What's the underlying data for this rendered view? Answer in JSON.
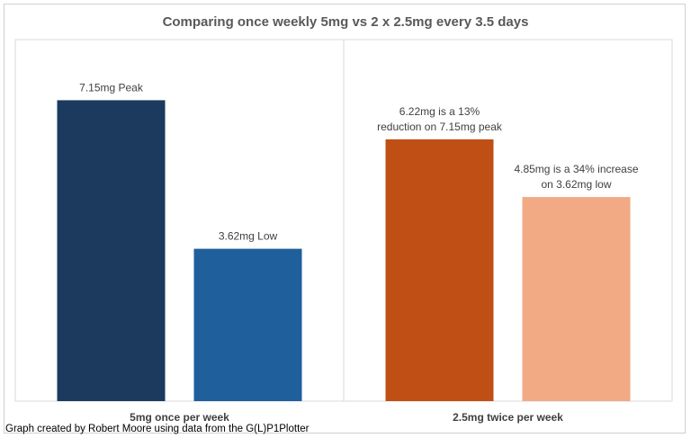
{
  "chart_data": {
    "type": "bar",
    "title": "Comparing once weekly 5mg vs 2 x 2.5mg every 3.5 days",
    "groups": [
      {
        "label": "5mg once per week",
        "bars": [
          {
            "value": 7.15,
            "color": "#1b3a5e",
            "label_lines": [
              "7.15mg Peak"
            ]
          },
          {
            "value": 3.62,
            "color": "#1f5f9c",
            "label_lines": [
              "3.62mg Low"
            ]
          }
        ]
      },
      {
        "label": "2.5mg twice per week",
        "bars": [
          {
            "value": 6.22,
            "color": "#c04f15",
            "label_lines": [
              "6.22mg is a 13%",
              "reduction on 7.15mg peak"
            ]
          },
          {
            "value": 4.85,
            "color": "#f1aa84",
            "label_lines": [
              "4.85mg is a 34% increase",
              "on 3.62mg low"
            ]
          }
        ]
      }
    ],
    "ylim": [
      0,
      7.5
    ],
    "grid": false,
    "legend": "none"
  },
  "caption": "Graph created by Robert Moore using data from the G(L)P1Plotter"
}
